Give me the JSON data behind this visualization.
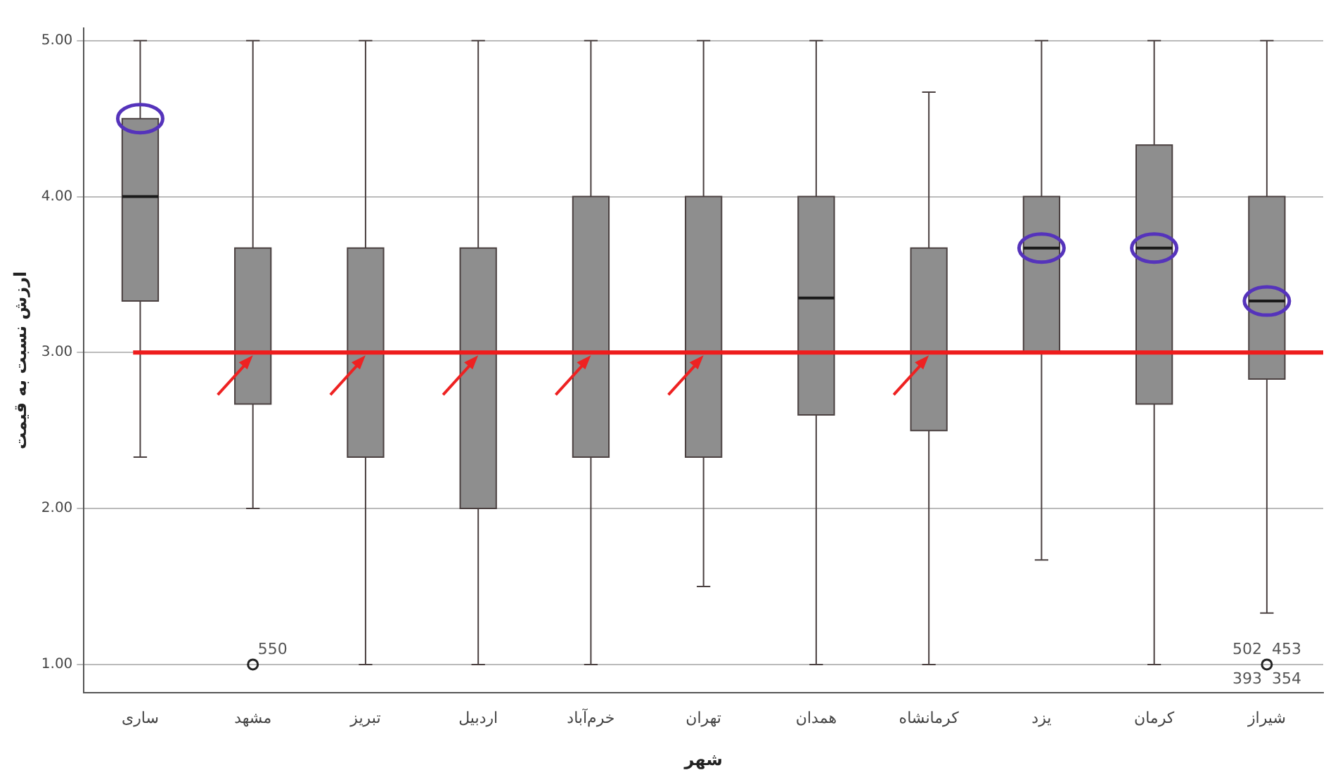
{
  "chart_data": {
    "type": "box",
    "xlabel": "شهر",
    "ylabel": "ارزش نسبت به قیمت",
    "categories": [
      "ساری",
      "مشهد",
      "تبریز",
      "اردبیل",
      "خرم‌آباد",
      "تهران",
      "همدان",
      "کرمانشاه",
      "یزد",
      "کرمان",
      "شیراز"
    ],
    "series": [
      {
        "color": "#8e8e8e",
        "boxes": [
          {
            "low": 2.33,
            "q1": 3.33,
            "median": 4,
            "q3": 4.5,
            "high": 5
          },
          {
            "low": 2,
            "q1": 2.67,
            "median": 3,
            "q3": 3.67,
            "high": 5,
            "outliers": [
              1
            ]
          },
          {
            "low": 1,
            "q1": 2.33,
            "median": 3,
            "q3": 3.67,
            "high": 5
          },
          {
            "low": 1,
            "q1": 2,
            "median": 3,
            "q3": 3.67,
            "high": 5
          },
          {
            "low": 1,
            "q1": 2.33,
            "median": 3,
            "q3": 4,
            "high": 5
          },
          {
            "low": 1.5,
            "q1": 2.33,
            "median": 3,
            "q3": 4,
            "high": 5
          },
          {
            "low": 1,
            "q1": 2.6,
            "median": 3.35,
            "q3": 4,
            "high": 5
          },
          {
            "low": 1,
            "q1": 2.5,
            "median": 3,
            "q3": 3.67,
            "high": 4.67
          },
          {
            "low": 1.67,
            "q1": 3,
            "median": 3.67,
            "q3": 4,
            "high": 5
          },
          {
            "low": 1,
            "q1": 2.67,
            "median": 3.67,
            "q3": 4.33,
            "high": 5
          },
          {
            "low": 1.33,
            "q1": 2.83,
            "median": 3.33,
            "q3": 4,
            "high": 5,
            "outliers": [
              1
            ]
          }
        ]
      }
    ],
    "ylim": [
      0.82,
      5.08
    ],
    "yticks": [
      {
        "value": 1,
        "label": "1.00"
      },
      {
        "value": 2,
        "label": "2.00"
      },
      {
        "value": 3,
        "label": "3.00"
      },
      {
        "value": 4,
        "label": "4.00"
      },
      {
        "value": 5,
        "label": "5.00"
      }
    ],
    "grid": "y",
    "legend": false,
    "ref_lines": [
      {
        "axis": "y",
        "value": 3,
        "color": "#ee1c1c"
      }
    ],
    "annotations": [
      "550",
      "502  453",
      "393  354"
    ]
  }
}
